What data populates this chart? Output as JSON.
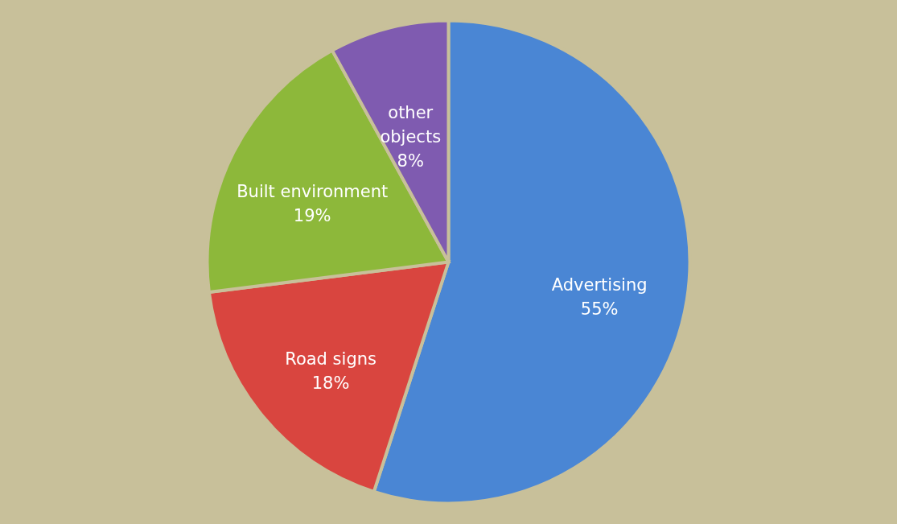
{
  "chart_data": {
    "type": "pie",
    "categories": [
      "Advertising",
      "Road signs",
      "Built environment",
      "other objects"
    ],
    "values": [
      55,
      18,
      19,
      8
    ],
    "value_labels": [
      "55%",
      "18%",
      "19%",
      "8%"
    ],
    "colors": [
      "#4a86d4",
      "#d9453f",
      "#8db83a",
      "#7f5bb0"
    ],
    "legend": false
  }
}
